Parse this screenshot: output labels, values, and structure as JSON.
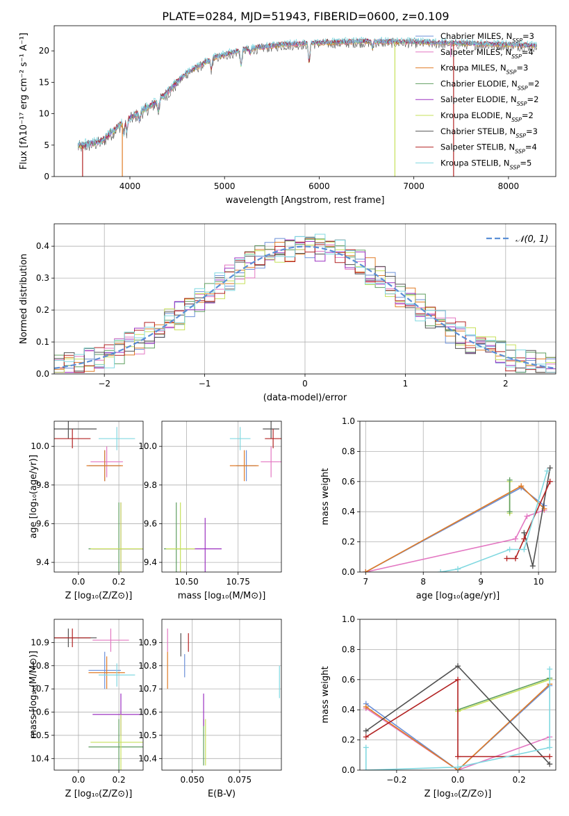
{
  "figure": {
    "title": "PLATE=0284, MJD=51943, FIBERID=0600, z=0.109",
    "colors": {
      "chabrier_miles": "#6a8fd8",
      "salpeter_miles": "#e377c2",
      "kroupa_miles": "#e07b26",
      "chabrier_elodie": "#5f9e5f",
      "salpeter_elodie": "#9b30c0",
      "kroupa_elodie": "#c6e05a",
      "chabrier_stelib": "#505050",
      "salpeter_stelib": "#b22222",
      "kroupa_stelib": "#80d8e0",
      "normal_curve": "#5b8fd6"
    }
  },
  "chart_data": [
    {
      "id": "spectrum",
      "type": "line",
      "xlabel": "wavelength [Angstrom, rest frame]",
      "ylabel": "Flux [fλ10⁻¹⁷ erg cm⁻² s⁻¹ A⁻¹]",
      "xlim": [
        3200,
        8500
      ],
      "ylim": [
        0,
        24
      ],
      "xticks": [
        "4000",
        "5000",
        "6000",
        "7000",
        "8000"
      ],
      "yticks": [
        "0",
        "5",
        "10",
        "15",
        "20"
      ],
      "legend_position": "upper-right",
      "legend": [
        {
          "label": "Chabrier MILES, N",
          "sub": "SSP",
          "value": "=3",
          "color": "#6a8fd8"
        },
        {
          "label": "Salpeter MILES, N",
          "sub": "SSP",
          "value": "=4",
          "color": "#e377c2"
        },
        {
          "label": "Kroupa MILES, N",
          "sub": "SSP",
          "value": "=3",
          "color": "#e07b26"
        },
        {
          "label": "Chabrier ELODIE, N",
          "sub": "SSP",
          "value": "=2",
          "color": "#5f9e5f"
        },
        {
          "label": "Salpeter ELODIE, N",
          "sub": "SSP",
          "value": "=2",
          "color": "#9b30c0"
        },
        {
          "label": "Kroupa ELODIE, N",
          "sub": "SSP",
          "value": "=2",
          "color": "#c6e05a"
        },
        {
          "label": "Chabrier STELIB, N",
          "sub": "SSP",
          "value": "=3",
          "color": "#505050"
        },
        {
          "label": "Salpeter STELIB, N",
          "sub": "SSP",
          "value": "=4",
          "color": "#b22222"
        },
        {
          "label": "Kroupa STELIB, N",
          "sub": "SSP",
          "value": "=5",
          "color": "#80d8e0"
        }
      ],
      "continuum": {
        "x": [
          3450,
          3700,
          3900,
          4100,
          4300,
          4600,
          4900,
          5200,
          5600,
          6000,
          6500,
          7000,
          7500,
          8000,
          8300
        ],
        "y": [
          4.8,
          5.6,
          8.3,
          10.2,
          12.0,
          16.5,
          19.0,
          20.2,
          21.0,
          21.3,
          21.5,
          21.4,
          21.2,
          21.0,
          20.8
        ]
      },
      "spikes": [
        {
          "x": 3500,
          "y": 0
        },
        {
          "x": 3920,
          "y": 0
        },
        {
          "x": 6800,
          "y": 0
        },
        {
          "x": 7420,
          "y": 0
        },
        {
          "x": 7390,
          "y": 19.0
        }
      ]
    },
    {
      "id": "residuals",
      "type": "step",
      "xlabel": "(data-model)/error",
      "ylabel": "Normed distribution",
      "xlim": [
        -2.5,
        2.5
      ],
      "ylim": [
        0,
        0.47
      ],
      "xticks": [
        "−2",
        "−1",
        "0",
        "1",
        "2"
      ],
      "yticks": [
        "0.0",
        "0.1",
        "0.2",
        "0.3",
        "0.4"
      ],
      "legend_position": "upper-right",
      "legend": [
        {
          "label": "𝒩(0, 1)",
          "color": "#5b8fd6",
          "dashed": true
        }
      ],
      "bin_width": 0.1
    },
    {
      "id": "age-vs-z",
      "type": "errorbar",
      "xlabel": "Z [log₁₀(Z/Z⊙)]",
      "ylabel": "age  [log₁₀(age/yr)]",
      "xlim": [
        -0.12,
        0.32
      ],
      "ylim": [
        9.35,
        10.13
      ],
      "xticks": [
        "0.0",
        "0.2"
      ],
      "yticks": [
        "9.4",
        "9.6",
        "9.8",
        "10.0"
      ],
      "points": [
        {
          "c": "chabrier_miles",
          "x": 0.13,
          "xerr": 0.08,
          "y": 9.9,
          "yerr": 0.08
        },
        {
          "c": "salpeter_miles",
          "x": 0.14,
          "xerr": 0.08,
          "y": 9.92,
          "yerr": 0.08
        },
        {
          "c": "kroupa_miles",
          "x": 0.13,
          "xerr": 0.09,
          "y": 9.9,
          "yerr": 0.08
        },
        {
          "c": "chabrier_elodie",
          "x": 0.2,
          "xerr": 0.15,
          "y": 9.47,
          "yerr": 0.24
        },
        {
          "c": "salpeter_elodie",
          "x": 0.21,
          "xerr": 0.14,
          "y": 9.47,
          "yerr": 0.24
        },
        {
          "c": "kroupa_elodie",
          "x": 0.21,
          "xerr": 0.15,
          "y": 9.47,
          "yerr": 0.24
        },
        {
          "c": "chabrier_stelib",
          "x": -0.05,
          "xerr": 0.14,
          "y": 10.09,
          "yerr": 0.05
        },
        {
          "c": "salpeter_stelib",
          "x": -0.03,
          "xerr": 0.09,
          "y": 10.04,
          "yerr": 0.05
        },
        {
          "c": "kroupa_stelib",
          "x": 0.19,
          "xerr": 0.09,
          "y": 10.04,
          "yerr": 0.06
        }
      ]
    },
    {
      "id": "age-vs-mass",
      "type": "errorbar",
      "xlabel": "mass [log₁₀(M/M⊙)]",
      "ylabel": "",
      "xlim": [
        10.38,
        10.96
      ],
      "ylim": [
        9.35,
        10.13
      ],
      "xticks": [
        "10.50",
        "10.75"
      ],
      "yticks": [
        "9.4",
        "9.6",
        "9.8",
        "10.0"
      ],
      "points": [
        {
          "c": "chabrier_miles",
          "x": 10.79,
          "xerr": 0.05,
          "y": 9.9,
          "yerr": 0.08
        },
        {
          "c": "salpeter_miles",
          "x": 10.91,
          "xerr": 0.05,
          "y": 9.92,
          "yerr": 0.08
        },
        {
          "c": "kroupa_miles",
          "x": 10.78,
          "xerr": 0.07,
          "y": 9.9,
          "yerr": 0.08
        },
        {
          "c": "chabrier_elodie",
          "x": 10.45,
          "xerr": 0.06,
          "y": 9.47,
          "yerr": 0.24
        },
        {
          "c": "salpeter_elodie",
          "x": 10.59,
          "xerr": 0.08,
          "y": 9.47,
          "yerr": 0.16
        },
        {
          "c": "kroupa_elodie",
          "x": 10.47,
          "xerr": 0.07,
          "y": 9.47,
          "yerr": 0.24
        },
        {
          "c": "chabrier_stelib",
          "x": 10.91,
          "xerr": 0.04,
          "y": 10.09,
          "yerr": 0.05
        },
        {
          "c": "salpeter_stelib",
          "x": 10.92,
          "xerr": 0.04,
          "y": 10.04,
          "yerr": 0.05
        },
        {
          "c": "kroupa_stelib",
          "x": 10.76,
          "xerr": 0.05,
          "y": 10.04,
          "yerr": 0.06
        }
      ]
    },
    {
      "id": "mass-weight-vs-age",
      "type": "line",
      "xlabel": "age  [log₁₀(age/yr)]",
      "ylabel": "mass weight",
      "xlim": [
        6.9,
        10.3
      ],
      "ylim": [
        0,
        1.0
      ],
      "xticks": [
        "7",
        "8",
        "9",
        "10"
      ],
      "yticks": [
        "0.0",
        "0.2",
        "0.4",
        "0.6",
        "0.8",
        "1.0"
      ],
      "series": [
        {
          "c": "chabrier_miles",
          "x": [
            7.0,
            9.7,
            10.1
          ],
          "y": [
            0.0,
            0.56,
            0.44
          ]
        },
        {
          "c": "salpeter_miles",
          "x": [
            7.0,
            9.6,
            9.8,
            10.1
          ],
          "y": [
            0.0,
            0.22,
            0.37,
            0.41
          ]
        },
        {
          "c": "kroupa_miles",
          "x": [
            7.0,
            9.7,
            10.1
          ],
          "y": [
            0.0,
            0.57,
            0.42
          ]
        },
        {
          "c": "kroupa_elodie",
          "x": [
            9.5,
            9.5
          ],
          "y": [
            0.39,
            0.6
          ]
        },
        {
          "c": "chabrier_elodie",
          "x": [
            9.5,
            9.5
          ],
          "y": [
            0.4,
            0.61
          ]
        },
        {
          "c": "chabrier_stelib",
          "x": [
            9.75,
            9.9,
            10.2
          ],
          "y": [
            0.26,
            0.04,
            0.69
          ]
        },
        {
          "c": "salpeter_stelib",
          "x": [
            9.45,
            9.6,
            9.75,
            10.2
          ],
          "y": [
            0.09,
            0.09,
            0.22,
            0.6
          ]
        },
        {
          "c": "kroupa_stelib",
          "x": [
            8.3,
            8.6,
            9.5,
            9.75,
            10.15
          ],
          "y": [
            0.0,
            0.02,
            0.15,
            0.15,
            0.67
          ]
        }
      ]
    },
    {
      "id": "mass-vs-z",
      "type": "errorbar",
      "xlabel": "Z [log₁₀(Z/Z⊙)]",
      "ylabel": "mass [log₁₀(M/M⊙)]",
      "xlim": [
        -0.12,
        0.32
      ],
      "ylim": [
        10.35,
        11.0
      ],
      "xticks": [
        "0.0",
        "0.2"
      ],
      "yticks": [
        "10.4",
        "10.5",
        "10.6",
        "10.7",
        "10.8",
        "10.9"
      ],
      "points": [
        {
          "c": "chabrier_miles",
          "x": 0.13,
          "xerr": 0.08,
          "y": 10.78,
          "yerr": 0.08
        },
        {
          "c": "salpeter_miles",
          "x": 0.16,
          "xerr": 0.09,
          "y": 10.91,
          "yerr": 0.05
        },
        {
          "c": "kroupa_miles",
          "x": 0.14,
          "xerr": 0.09,
          "y": 10.77,
          "yerr": 0.07
        },
        {
          "c": "chabrier_elodie",
          "x": 0.2,
          "xerr": 0.15,
          "y": 10.45,
          "yerr": 0.12
        },
        {
          "c": "salpeter_elodie",
          "x": 0.21,
          "xerr": 0.14,
          "y": 10.59,
          "yerr": 0.09
        },
        {
          "c": "kroupa_elodie",
          "x": 0.21,
          "xerr": 0.15,
          "y": 10.47,
          "yerr": 0.12
        },
        {
          "c": "chabrier_stelib",
          "x": -0.05,
          "xerr": 0.14,
          "y": 10.92,
          "yerr": 0.04
        },
        {
          "c": "salpeter_stelib",
          "x": -0.03,
          "xerr": 0.09,
          "y": 10.92,
          "yerr": 0.04
        },
        {
          "c": "kroupa_stelib",
          "x": 0.19,
          "xerr": 0.09,
          "y": 10.76,
          "yerr": 0.05
        }
      ]
    },
    {
      "id": "mass-vs-ebv",
      "type": "errorbar",
      "xlabel": "E(B-V)",
      "ylabel": "",
      "xlim": [
        0.034,
        0.097
      ],
      "ylim": [
        10.35,
        11.0
      ],
      "xticks": [
        "0.050",
        "0.075"
      ],
      "yticks": [
        "10.4",
        "10.5",
        "10.6",
        "10.7",
        "10.8",
        "10.9"
      ],
      "points": [
        {
          "c": "chabrier_miles",
          "x": 0.046,
          "xerr": 0,
          "y": 10.8,
          "yerr": 0.05
        },
        {
          "c": "salpeter_miles",
          "x": 0.037,
          "xerr": 0,
          "y": 10.91,
          "yerr": 0.05
        },
        {
          "c": "kroupa_miles",
          "x": 0.037,
          "xerr": 0,
          "y": 10.78,
          "yerr": 0.08
        },
        {
          "c": "chabrier_elodie",
          "x": 0.056,
          "xerr": 0,
          "y": 10.47,
          "yerr": 0.1
        },
        {
          "c": "salpeter_elodie",
          "x": 0.056,
          "xerr": 0,
          "y": 10.61,
          "yerr": 0.07
        },
        {
          "c": "kroupa_elodie",
          "x": 0.057,
          "xerr": 0,
          "y": 10.47,
          "yerr": 0.1
        },
        {
          "c": "chabrier_stelib",
          "x": 0.044,
          "xerr": 0,
          "y": 10.89,
          "yerr": 0.05
        },
        {
          "c": "salpeter_stelib",
          "x": 0.048,
          "xerr": 0,
          "y": 10.9,
          "yerr": 0.04
        },
        {
          "c": "kroupa_stelib",
          "x": 0.096,
          "xerr": 0,
          "y": 10.73,
          "yerr": 0.07
        }
      ]
    },
    {
      "id": "mass-weight-vs-z",
      "type": "line",
      "xlabel": "Z [log₁₀(Z/Z⊙)]",
      "ylabel": "mass weight",
      "xlim": [
        -0.32,
        0.32
      ],
      "ylim": [
        0,
        1.0
      ],
      "xticks": [
        "−0.2",
        "0.0",
        "0.2"
      ],
      "yticks": [
        "0.0",
        "0.2",
        "0.4",
        "0.6",
        "0.8",
        "1.0"
      ],
      "series": [
        {
          "c": "chabrier_miles",
          "x": [
            -0.3,
            0.0,
            0.3
          ],
          "y": [
            0.44,
            0.0,
            0.56
          ]
        },
        {
          "c": "salpeter_miles",
          "x": [
            -0.3,
            0.0,
            0.3
          ],
          "y": [
            0.41,
            0.0,
            0.22
          ]
        },
        {
          "c": "kroupa_miles",
          "x": [
            -0.3,
            0.0,
            0.3
          ],
          "y": [
            0.42,
            0.0,
            0.57
          ]
        },
        {
          "c": "chabrier_elodie",
          "x": [
            0.0,
            0.3
          ],
          "y": [
            0.4,
            0.61
          ]
        },
        {
          "c": "kroupa_elodie",
          "x": [
            0.0,
            0.3
          ],
          "y": [
            0.39,
            0.6
          ]
        },
        {
          "c": "chabrier_stelib",
          "x": [
            -0.3,
            0.0,
            0.3
          ],
          "y": [
            0.26,
            0.69,
            0.04
          ]
        },
        {
          "c": "salpeter_stelib",
          "x": [
            -0.3,
            0.0,
            0.0,
            0.3
          ],
          "y": [
            0.22,
            0.6,
            0.09,
            0.09
          ]
        },
        {
          "c": "kroupa_stelib",
          "x": [
            -0.3,
            -0.3,
            0.0,
            0.3,
            0.3
          ],
          "y": [
            0.15,
            0.0,
            0.02,
            0.15,
            0.67
          ]
        }
      ]
    }
  ]
}
